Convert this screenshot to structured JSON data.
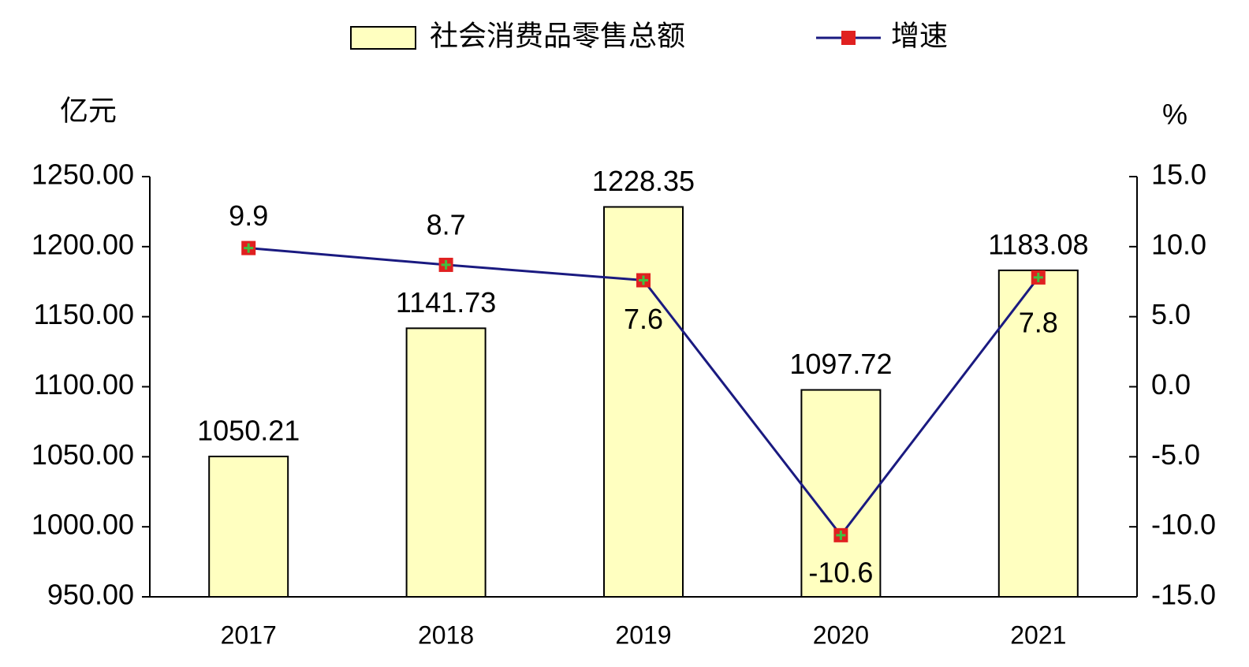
{
  "chart_data": {
    "type": "bar",
    "y_label": "亿元",
    "y2_label": "%",
    "categories": [
      "2017",
      "2018",
      "2019",
      "2020",
      "2021"
    ],
    "series": [
      {
        "name": "社会消费品零售总额",
        "type": "bar",
        "color": "#ffffc0",
        "values": [
          1050.21,
          1141.73,
          1228.35,
          1097.72,
          1183.08
        ]
      },
      {
        "name": "增速",
        "type": "line",
        "axis": "y2",
        "color": "#1a1a80",
        "values": [
          9.9,
          8.7,
          7.6,
          -10.6,
          7.8
        ]
      }
    ],
    "ylim": [
      950,
      1250
    ],
    "yticks": [
      {
        "value": 950,
        "label": "950.00"
      },
      {
        "value": 1000,
        "label": "1000.00"
      },
      {
        "value": 1050,
        "label": "1050.00"
      },
      {
        "value": 1100,
        "label": "1100.00"
      },
      {
        "value": 1150,
        "label": "1150.00"
      },
      {
        "value": 1200,
        "label": "1200.00"
      },
      {
        "value": 1250,
        "label": "1250.00"
      }
    ],
    "y2lim": [
      -15,
      15
    ],
    "y2ticks": [
      {
        "value": -15,
        "label": "-15.0"
      },
      {
        "value": -10,
        "label": "-10.0"
      },
      {
        "value": -5,
        "label": "-5.0"
      },
      {
        "value": 0,
        "label": "0.0"
      },
      {
        "value": 5,
        "label": "5.0"
      },
      {
        "value": 10,
        "label": "10.0"
      },
      {
        "value": 15,
        "label": "15.0"
      }
    ],
    "grid": false,
    "legend": "top"
  }
}
